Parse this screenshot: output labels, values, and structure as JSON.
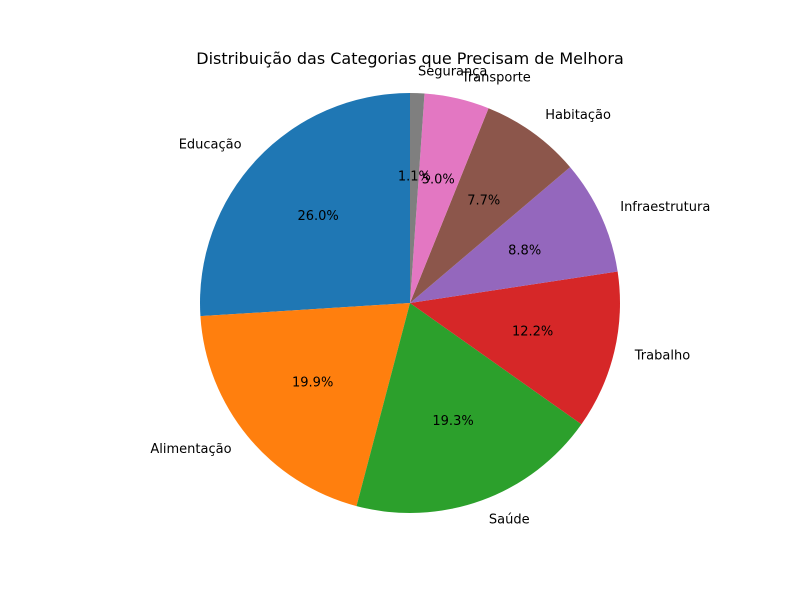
{
  "chart_data": {
    "type": "pie",
    "title": "Distribuição das Categorias que Precisam de Melhora",
    "categories": [
      "Educação",
      "Alimentação",
      "Saúde",
      "Trabalho",
      "Infraestrutura",
      "Habitação",
      "Transporte",
      "Segurança"
    ],
    "values": [
      26.0,
      19.9,
      19.3,
      12.2,
      8.8,
      7.7,
      5.0,
      1.1
    ],
    "value_labels": [
      "26.0%",
      "19.9%",
      "19.3%",
      "12.2%",
      "8.8%",
      "7.7%",
      "5.0%",
      "1.1%"
    ],
    "colors": [
      "#1f77b4",
      "#ff7f0e",
      "#2ca02c",
      "#d62728",
      "#9467bd",
      "#8c564b",
      "#e377c2",
      "#7f7f7f"
    ],
    "start_angle_deg": 90,
    "direction": "counterclockwise",
    "legend": "none"
  }
}
